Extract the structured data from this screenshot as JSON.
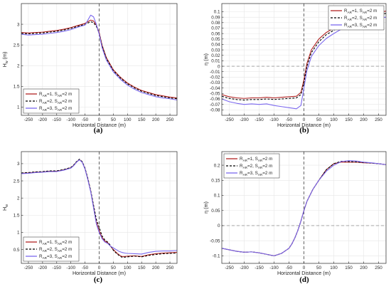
{
  "chart_data": [
    {
      "type": "line",
      "panel_label": "(a)",
      "xlabel": "Horizontal Distance (m)",
      "ylabel": "H",
      "ylabel_sub": "w",
      "ylabel_unit": " (m)",
      "xlim": [
        -275,
        275
      ],
      "ylim": [
        0.8,
        3.5
      ],
      "xticks": [
        -250,
        -200,
        -150,
        -100,
        -50,
        0,
        50,
        100,
        150,
        200,
        250
      ],
      "yticks": [
        1,
        1.5,
        2,
        2.5,
        3
      ],
      "grid": true,
      "vline_x": 0,
      "hline_y": null,
      "legend_position": "bottom-left",
      "x": [
        -275,
        -250,
        -225,
        -200,
        -175,
        -150,
        -125,
        -100,
        -75,
        -50,
        -30,
        -20,
        -10,
        0,
        10,
        25,
        50,
        75,
        100,
        125,
        150,
        175,
        200,
        225,
        250,
        275
      ],
      "series": [
        {
          "name": "R_AR=1, S_AR=2 m",
          "values": [
            2.8,
            2.79,
            2.8,
            2.81,
            2.83,
            2.85,
            2.88,
            2.92,
            2.97,
            3.02,
            3.1,
            3.08,
            2.98,
            2.8,
            2.5,
            2.2,
            1.9,
            1.72,
            1.58,
            1.48,
            1.4,
            1.35,
            1.3,
            1.27,
            1.24,
            1.22
          ]
        },
        {
          "name": "R_AR=2, S_AR=2 m",
          "values": [
            2.78,
            2.77,
            2.78,
            2.79,
            2.81,
            2.83,
            2.86,
            2.9,
            2.95,
            3.0,
            3.06,
            3.04,
            2.95,
            2.78,
            2.48,
            2.18,
            1.88,
            1.7,
            1.56,
            1.46,
            1.38,
            1.33,
            1.28,
            1.25,
            1.22,
            1.2
          ]
        },
        {
          "name": "R_AR=3, S_AR=2 m",
          "values": [
            2.76,
            2.74,
            2.75,
            2.76,
            2.78,
            2.8,
            2.83,
            2.87,
            2.93,
            2.98,
            3.22,
            3.18,
            3.0,
            2.76,
            2.44,
            2.14,
            1.85,
            1.67,
            1.53,
            1.43,
            1.35,
            1.3,
            1.25,
            1.22,
            1.2,
            1.17
          ]
        }
      ]
    },
    {
      "type": "line",
      "panel_label": "(b)",
      "xlabel": "Horizontal Distance (m)",
      "ylabel": "η",
      "ylabel_sub": "",
      "ylabel_unit": " (m)",
      "xlim": [
        -275,
        275
      ],
      "ylim": [
        -0.09,
        0.115
      ],
      "xticks": [
        -250,
        -200,
        -150,
        -100,
        -50,
        0,
        50,
        100,
        150,
        200,
        250
      ],
      "yticks": [
        -0.08,
        -0.07,
        -0.06,
        -0.05,
        -0.04,
        -0.03,
        -0.02,
        -0.01,
        0,
        0.01,
        0.02,
        0.03,
        0.04,
        0.05,
        0.06,
        0.07,
        0.08,
        0.09,
        0.1
      ],
      "grid": true,
      "vline_x": 0,
      "hline_y": 0,
      "legend_position": "top-right",
      "x": [
        -275,
        -250,
        -225,
        -200,
        -175,
        -150,
        -125,
        -100,
        -75,
        -50,
        -25,
        -10,
        0,
        10,
        25,
        50,
        75,
        100,
        125,
        150,
        175,
        200,
        225,
        250,
        275
      ],
      "series": [
        {
          "name": "R_AR=1, S_AR=2 m",
          "values": [
            -0.052,
            -0.056,
            -0.058,
            -0.059,
            -0.058,
            -0.058,
            -0.057,
            -0.058,
            -0.057,
            -0.056,
            -0.055,
            -0.048,
            -0.025,
            0.005,
            0.03,
            0.05,
            0.062,
            0.07,
            0.078,
            0.085,
            0.09,
            0.094,
            0.097,
            0.099,
            0.101
          ]
        },
        {
          "name": "R_AR=2, S_AR=2 m",
          "values": [
            -0.055,
            -0.059,
            -0.061,
            -0.062,
            -0.061,
            -0.061,
            -0.06,
            -0.061,
            -0.06,
            -0.059,
            -0.058,
            -0.052,
            -0.03,
            0.0,
            0.025,
            0.045,
            0.058,
            0.066,
            0.074,
            0.081,
            0.086,
            0.09,
            0.093,
            0.095,
            0.097
          ]
        },
        {
          "name": "R_AR=3, S_AR=2 m",
          "values": [
            -0.06,
            -0.065,
            -0.068,
            -0.07,
            -0.069,
            -0.07,
            -0.069,
            -0.072,
            -0.074,
            -0.076,
            -0.078,
            -0.072,
            -0.04,
            -0.008,
            0.018,
            0.038,
            0.051,
            0.06,
            0.068,
            0.075,
            0.08,
            0.084,
            0.087,
            0.089,
            0.09
          ]
        }
      ]
    },
    {
      "type": "line",
      "panel_label": "(c)",
      "xlabel": "Horizontal Distance (m)",
      "ylabel": "H",
      "ylabel_sub": "w",
      "ylabel_unit": "",
      "xlim": [
        -275,
        275
      ],
      "ylim": [
        0.1,
        3.35
      ],
      "xticks": [
        -250,
        -200,
        -150,
        -100,
        -50,
        0,
        50,
        100,
        150,
        200,
        250
      ],
      "yticks": [
        0.5,
        1,
        1.5,
        2,
        2.5,
        3
      ],
      "grid": true,
      "vline_x": 0,
      "hline_y": null,
      "legend_position": "bottom-left",
      "x": [
        -275,
        -250,
        -225,
        -200,
        -175,
        -150,
        -125,
        -100,
        -90,
        -80,
        -70,
        -60,
        -50,
        -40,
        -30,
        -20,
        -10,
        0,
        10,
        20,
        30,
        40,
        50,
        60,
        70,
        80,
        90,
        100,
        125,
        150,
        175,
        200,
        225,
        250,
        275
      ],
      "series": [
        {
          "name": "R_AR=1, S_AR=2 m",
          "values": [
            2.72,
            2.73,
            2.75,
            2.76,
            2.78,
            2.78,
            2.82,
            2.88,
            2.95,
            3.05,
            3.12,
            3.05,
            2.85,
            2.55,
            2.2,
            1.75,
            1.3,
            1.05,
            0.85,
            0.75,
            0.7,
            0.6,
            0.5,
            0.42,
            0.35,
            0.3,
            0.3,
            0.31,
            0.32,
            0.3,
            0.35,
            0.38,
            0.4,
            0.41,
            0.42
          ]
        },
        {
          "name": "R_AR=2, S_AR=2 m",
          "values": [
            2.73,
            2.74,
            2.76,
            2.77,
            2.79,
            2.79,
            2.83,
            2.89,
            2.96,
            3.06,
            3.13,
            3.06,
            2.87,
            2.57,
            2.22,
            1.8,
            1.38,
            1.15,
            0.9,
            0.78,
            0.72,
            0.62,
            0.48,
            0.4,
            0.33,
            0.28,
            0.28,
            0.29,
            0.31,
            0.29,
            0.33,
            0.36,
            0.38,
            0.39,
            0.4
          ]
        },
        {
          "name": "R_AR=3, S_AR=2 m",
          "values": [
            2.71,
            2.72,
            2.74,
            2.75,
            2.77,
            2.77,
            2.81,
            2.87,
            2.94,
            3.04,
            3.11,
            3.04,
            2.84,
            2.53,
            2.18,
            1.72,
            1.25,
            1.0,
            0.82,
            0.72,
            0.68,
            0.6,
            0.55,
            0.5,
            0.45,
            0.42,
            0.4,
            0.39,
            0.38,
            0.37,
            0.42,
            0.45,
            0.46,
            0.46,
            0.47
          ]
        }
      ]
    },
    {
      "type": "line",
      "panel_label": "(d)",
      "xlabel": "Horizontal Distance (m)",
      "ylabel": "η",
      "ylabel_sub": "",
      "ylabel_unit": " (m)",
      "xlim": [
        -275,
        275
      ],
      "ylim": [
        -0.125,
        0.245
      ],
      "xticks": [
        -250,
        -200,
        -150,
        -100,
        -50,
        0,
        50,
        100,
        150,
        200,
        250
      ],
      "yticks": [
        -0.1,
        -0.05,
        0,
        0.05,
        0.1,
        0.15,
        0.2
      ],
      "grid": true,
      "vline_x": 0,
      "hline_y": 0,
      "legend_position": "top-left",
      "x": [
        -275,
        -250,
        -225,
        -200,
        -175,
        -150,
        -125,
        -100,
        -75,
        -50,
        -40,
        -30,
        -20,
        -10,
        0,
        10,
        20,
        30,
        50,
        75,
        100,
        125,
        150,
        175,
        200,
        225,
        250,
        275
      ],
      "series": [
        {
          "name": "R_AR=1, S_AR=2 m",
          "values": [
            -0.075,
            -0.08,
            -0.085,
            -0.088,
            -0.087,
            -0.09,
            -0.095,
            -0.1,
            -0.092,
            -0.075,
            -0.06,
            -0.04,
            -0.015,
            0.015,
            0.05,
            0.08,
            0.1,
            0.12,
            0.15,
            0.185,
            0.205,
            0.21,
            0.21,
            0.21,
            0.208,
            0.207,
            0.205,
            0.202
          ]
        },
        {
          "name": "R_AR=2, S_AR=2 m",
          "values": [
            -0.075,
            -0.08,
            -0.085,
            -0.088,
            -0.087,
            -0.09,
            -0.095,
            -0.1,
            -0.092,
            -0.075,
            -0.06,
            -0.04,
            -0.015,
            0.015,
            0.05,
            0.08,
            0.1,
            0.12,
            0.15,
            0.185,
            0.205,
            0.213,
            0.212,
            0.211,
            0.209,
            0.207,
            0.205,
            0.202
          ]
        },
        {
          "name": "R_AR=3, S_AR=2 m",
          "values": [
            -0.075,
            -0.08,
            -0.085,
            -0.088,
            -0.087,
            -0.09,
            -0.095,
            -0.1,
            -0.092,
            -0.075,
            -0.06,
            -0.04,
            -0.015,
            0.015,
            0.05,
            0.08,
            0.1,
            0.12,
            0.15,
            0.18,
            0.2,
            0.212,
            0.215,
            0.214,
            0.21,
            0.208,
            0.205,
            0.202
          ]
        }
      ]
    }
  ],
  "legend": {
    "r_prefix": "R",
    "r_sub": "AR",
    "s_sub": "AR",
    "entries": [
      {
        "r_value": "=1, S",
        "s_value": "=2 m"
      },
      {
        "r_value": "=2, S",
        "s_value": "=2 m"
      },
      {
        "r_value": "=3, S",
        "s_value": "=2 m"
      }
    ]
  },
  "series_styles": [
    {
      "color": "#b22222",
      "dash": "",
      "width": 1.1
    },
    {
      "color": "#000000",
      "dash": "3,2",
      "width": 1.1
    },
    {
      "color": "#7b68ee",
      "dash": "",
      "width": 1.1
    }
  ]
}
